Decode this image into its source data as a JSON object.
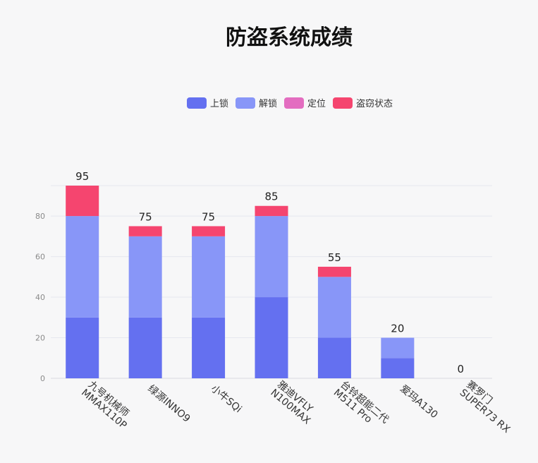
{
  "chart_data": {
    "type": "bar",
    "stacked": true,
    "title": "防盗系统成绩",
    "categories": [
      [
        "九号机械师",
        "MMAX110P"
      ],
      [
        "绿源INNO9"
      ],
      [
        "小牛SQi"
      ],
      [
        "雅迪VFLY",
        "N100MAX"
      ],
      [
        "台铃超能二代",
        "M511 Pro"
      ],
      [
        "爱玛A130"
      ],
      [
        "赛罗门",
        "SUPER73 RX"
      ]
    ],
    "series": [
      {
        "name": "上锁",
        "color": "#6470f0",
        "values": [
          30,
          30,
          30,
          40,
          20,
          10,
          0
        ]
      },
      {
        "name": "解锁",
        "color": "#8896f8",
        "values": [
          50,
          40,
          40,
          40,
          30,
          10,
          0
        ]
      },
      {
        "name": "定位",
        "color": "#e36dc0",
        "values": [
          0,
          0,
          0,
          0,
          0,
          0,
          0
        ]
      },
      {
        "name": "盗窃状态",
        "color": "#f5456f",
        "values": [
          15,
          5,
          5,
          5,
          5,
          0,
          0
        ]
      }
    ],
    "totals": [
      95,
      75,
      75,
      85,
      55,
      20,
      0
    ],
    "yticks": [
      0,
      20,
      40,
      60,
      80
    ],
    "ylim": [
      0,
      95
    ],
    "grid": true,
    "legend_position": "top-center"
  }
}
